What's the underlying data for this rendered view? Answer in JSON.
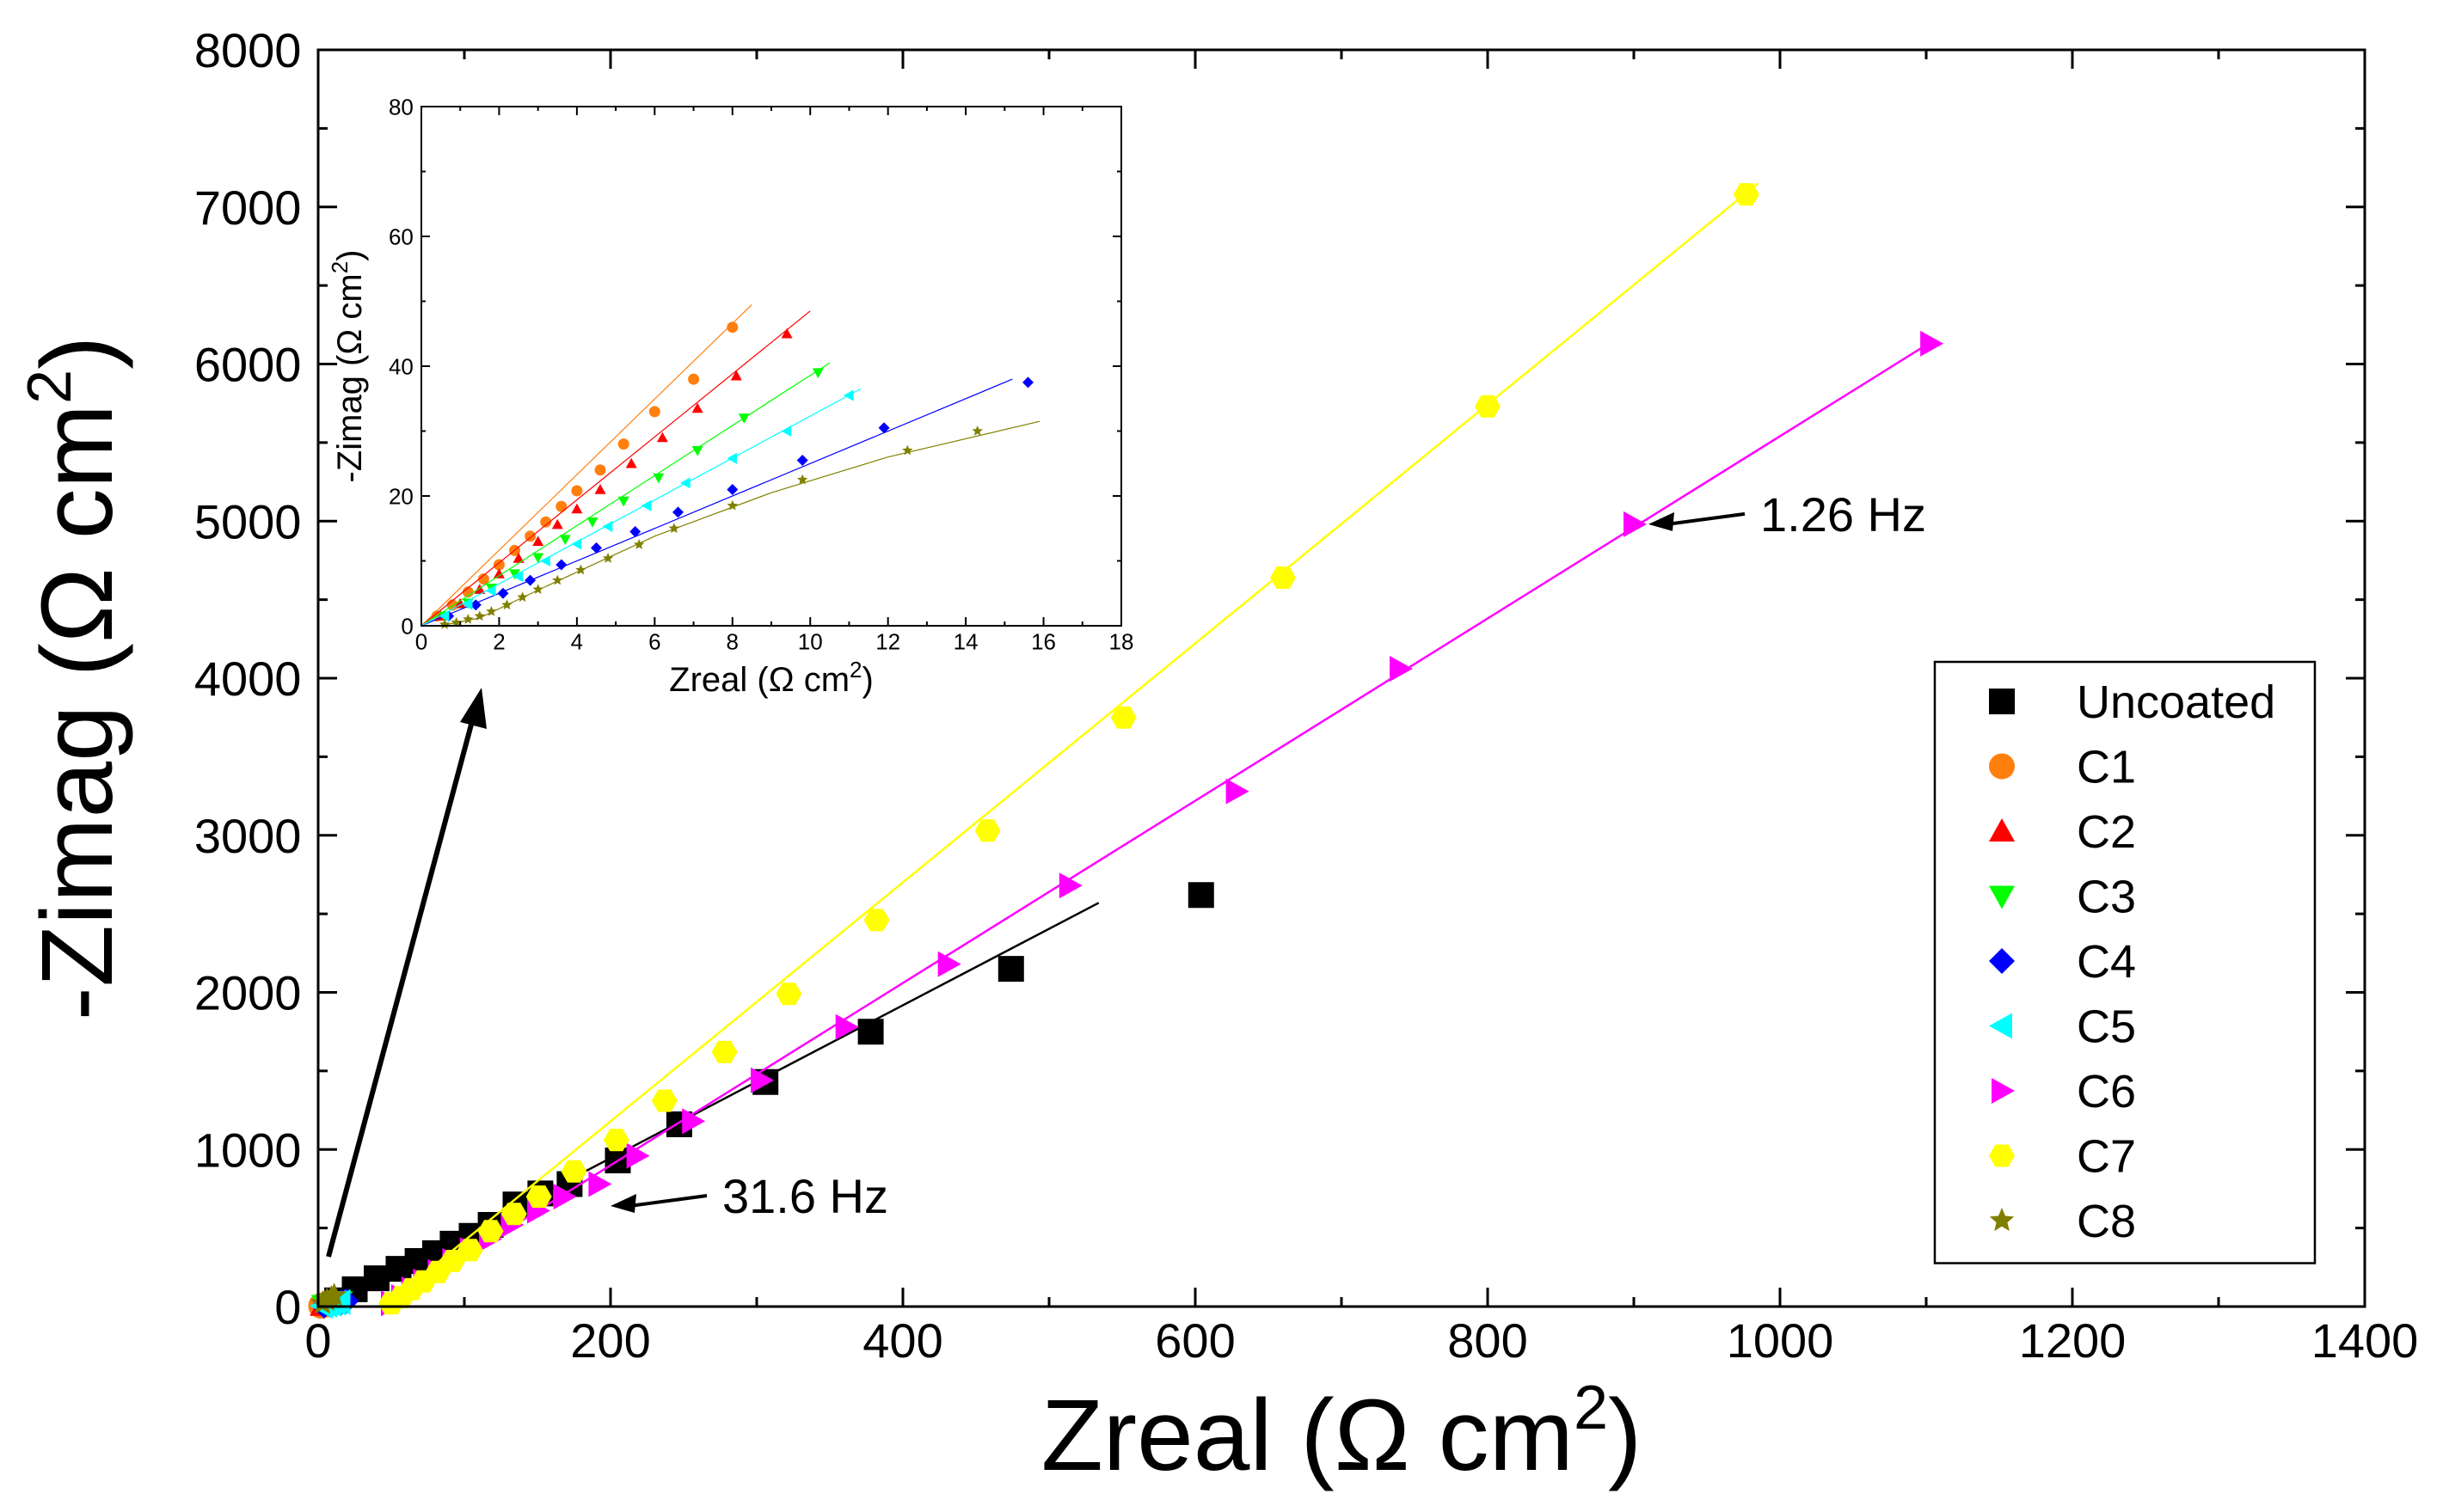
{
  "chart_data": [
    {
      "type": "scatter",
      "xlabel_main": "Zreal (Ω cm",
      "xlabel_sup": "2",
      "xlabel_close": ")",
      "ylabel_main": "-Zimag (Ω cm",
      "ylabel_sup": "2",
      "ylabel_close": ")",
      "xlim": [
        0,
        1400
      ],
      "ylim": [
        0,
        8000
      ],
      "x_ticks": [
        "0",
        "200",
        "400",
        "600",
        "800",
        "1000",
        "1200",
        "1400"
      ],
      "y_ticks": [
        "0",
        "1000",
        "2000",
        "3000",
        "4000",
        "5000",
        "6000",
        "7000",
        "8000"
      ],
      "legend_position": "bottom-right",
      "annotations": [
        {
          "text": "1.26 Hz",
          "x": 910,
          "y": 4980
        },
        {
          "text": "31.6 Hz",
          "x": 200,
          "y": 640
        }
      ],
      "series": [
        {
          "name": "Uncoated",
          "marker": "square",
          "color": "#000000",
          "points": [
            [
              13,
              40
            ],
            [
              25,
              110
            ],
            [
              40,
              180
            ],
            [
              55,
              240
            ],
            [
              68,
              290
            ],
            [
              80,
              340
            ],
            [
              92,
              400
            ],
            [
              105,
              450
            ],
            [
              118,
              520
            ],
            [
              135,
              650
            ],
            [
              152,
              720
            ],
            [
              172,
              780
            ],
            [
              205,
              930
            ],
            [
              247,
              1160
            ],
            [
              306,
              1430
            ],
            [
              378,
              1750
            ],
            [
              474,
              2150
            ],
            [
              604,
              2620
            ]
          ],
          "fit": [
            [
              10,
              20
            ],
            [
              534,
              2570
            ]
          ]
        },
        {
          "name": "C1",
          "marker": "circle",
          "color": "#ff7f0e",
          "points": [
            [
              2,
              5
            ],
            [
              4,
              10
            ],
            [
              6,
              16
            ],
            [
              8,
              22
            ]
          ],
          "fit": [
            [
              0,
              0
            ],
            [
              10,
              28
            ]
          ]
        },
        {
          "name": "C2",
          "marker": "triangle-up",
          "color": "#ff0000",
          "points": [
            [
              3,
              7
            ],
            [
              6,
              14
            ],
            [
              9,
              22
            ],
            [
              12,
              30
            ]
          ],
          "fit": [
            [
              0,
              0
            ],
            [
              14,
              34
            ]
          ]
        },
        {
          "name": "C3",
          "marker": "triangle-down",
          "color": "#00ff00",
          "points": [
            [
              4,
              8
            ],
            [
              8,
              16
            ],
            [
              12,
              24
            ],
            [
              15,
              31
            ]
          ],
          "fit": [
            [
              0,
              0
            ],
            [
              17,
              35
            ]
          ]
        },
        {
          "name": "C4",
          "marker": "diamond",
          "color": "#0000ff",
          "points": [
            [
              4,
              6
            ],
            [
              8,
              12
            ],
            [
              12,
              20
            ],
            [
              16,
              28
            ],
            [
              19,
              35
            ]
          ],
          "fit": [
            [
              0,
              0
            ],
            [
              20,
              38
            ]
          ]
        },
        {
          "name": "C5",
          "marker": "triangle-left",
          "color": "#00ffff",
          "points": [
            [
              3,
              5
            ],
            [
              6,
              11
            ],
            [
              9,
              17
            ],
            [
              12,
              24
            ],
            [
              15,
              29
            ]
          ],
          "fit": [
            [
              0,
              0
            ],
            [
              16,
              32
            ]
          ]
        },
        {
          "name": "C6",
          "marker": "triangle-right",
          "color": "#ff00ff",
          "points": [
            [
              50,
              20
            ],
            [
              57,
              60
            ],
            [
              64,
              110
            ],
            [
              72,
              160
            ],
            [
              82,
              220
            ],
            [
              92,
              290
            ],
            [
              104,
              360
            ],
            [
              117,
              430
            ],
            [
              132,
              520
            ],
            [
              150,
              610
            ],
            [
              168,
              700
            ],
            [
              192,
              780
            ],
            [
              218,
              960
            ],
            [
              256,
              1180
            ],
            [
              303,
              1440
            ],
            [
              361,
              1780
            ],
            [
              431,
              2180
            ],
            [
              514,
              2680
            ],
            [
              628,
              3280
            ],
            [
              740,
              4060
            ],
            [
              900,
              4980
            ],
            [
              1103,
              6130
            ]
          ],
          "fit": [
            [
              45,
              0
            ],
            [
              1105,
              6150
            ]
          ]
        },
        {
          "name": "C7",
          "marker": "hexagon",
          "color": "#ffff00",
          "points": [
            [
              50,
              20
            ],
            [
              57,
              60
            ],
            [
              64,
              110
            ],
            [
              72,
              160
            ],
            [
              82,
              220
            ],
            [
              92,
              290
            ],
            [
              104,
              360
            ],
            [
              118,
              480
            ],
            [
              134,
              590
            ],
            [
              151,
              700
            ],
            [
              175,
              860
            ],
            [
              204,
              1060
            ],
            [
              237,
              1310
            ],
            [
              278,
              1620
            ],
            [
              322,
              1990
            ],
            [
              382,
              2460
            ],
            [
              458,
              3030
            ],
            [
              551,
              3750
            ],
            [
              660,
              4640
            ],
            [
              800,
              5730
            ],
            [
              977,
              7080
            ]
          ],
          "fit": [
            [
              45,
              0
            ],
            [
              985,
              7150
            ]
          ]
        },
        {
          "name": "C8",
          "marker": "star",
          "color": "#808000",
          "points": [
            [
              3,
              20
            ],
            [
              6,
              40
            ],
            [
              9,
              55
            ],
            [
              11,
              70
            ]
          ],
          "fit": [
            [
              0,
              0
            ],
            [
              14,
              80
            ]
          ]
        }
      ]
    },
    {
      "type": "scatter",
      "role": "inset",
      "xlabel_main": "Zreal (Ω cm",
      "xlabel_sup": "2",
      "xlabel_close": ")",
      "ylabel_main": "-Zimag (Ω cm",
      "ylabel_sup": "2",
      "ylabel_close": ")",
      "xlim": [
        0,
        18
      ],
      "ylim": [
        0,
        80
      ],
      "x_ticks": [
        "0",
        "2",
        "4",
        "6",
        "8",
        "10",
        "12",
        "14",
        "16",
        "18"
      ],
      "y_ticks": [
        "0",
        "20",
        "40",
        "60",
        "80"
      ],
      "series": [
        {
          "name": "C1",
          "marker": "circle",
          "color": "#ff7f0e",
          "points": [
            [
              0.4,
              1.5
            ],
            [
              0.8,
              3.2
            ],
            [
              1.2,
              5.2
            ],
            [
              1.6,
              7.2
            ],
            [
              2.0,
              9.4
            ],
            [
              2.4,
              11.6
            ],
            [
              2.8,
              13.8
            ],
            [
              3.2,
              16.0
            ],
            [
              3.6,
              18.4
            ],
            [
              4.0,
              20.8
            ],
            [
              4.6,
              24.0
            ],
            [
              5.2,
              28.0
            ],
            [
              6.0,
              33.0
            ],
            [
              7.0,
              38.0
            ],
            [
              8.0,
              46.0
            ]
          ],
          "fit": [
            [
              0,
              0
            ],
            [
              8.5,
              49.5
            ]
          ]
        },
        {
          "name": "C2",
          "marker": "triangle-up",
          "color": "#ff0000",
          "points": [
            [
              0.5,
              1.5
            ],
            [
              1.0,
              3.4
            ],
            [
              1.5,
              5.6
            ],
            [
              2.0,
              8.0
            ],
            [
              2.5,
              10.4
            ],
            [
              3.0,
              13.0
            ],
            [
              3.5,
              15.6
            ],
            [
              4.0,
              18.0
            ],
            [
              4.6,
              21.0
            ],
            [
              5.4,
              25.0
            ],
            [
              6.2,
              29.0
            ],
            [
              7.1,
              33.5
            ],
            [
              8.1,
              38.5
            ],
            [
              9.4,
              45.0
            ]
          ],
          "fit": [
            [
              0,
              0
            ],
            [
              10,
              48.5
            ]
          ]
        },
        {
          "name": "C3",
          "marker": "triangle-down",
          "color": "#00ff00",
          "points": [
            [
              0.6,
              1.5
            ],
            [
              1.2,
              3.5
            ],
            [
              1.8,
              5.8
            ],
            [
              2.4,
              8.0
            ],
            [
              3.0,
              10.5
            ],
            [
              3.7,
              13.3
            ],
            [
              4.4,
              16.0
            ],
            [
              5.2,
              19.2
            ],
            [
              6.1,
              22.8
            ],
            [
              7.1,
              27.0
            ],
            [
              8.3,
              32.0
            ],
            [
              10.2,
              39.0
            ]
          ],
          "fit": [
            [
              0,
              0
            ],
            [
              10.5,
              40.5
            ]
          ]
        },
        {
          "name": "C4",
          "marker": "diamond",
          "color": "#0000ff",
          "points": [
            [
              0.7,
              1.5
            ],
            [
              1.4,
              3.2
            ],
            [
              2.1,
              5.0
            ],
            [
              2.8,
              7.0
            ],
            [
              3.6,
              9.4
            ],
            [
              4.5,
              12.0
            ],
            [
              5.5,
              14.5
            ],
            [
              6.6,
              17.5
            ],
            [
              8.0,
              21.0
            ],
            [
              9.8,
              25.5
            ],
            [
              11.9,
              30.5
            ],
            [
              15.6,
              37.5
            ]
          ],
          "fit": [
            [
              0,
              0
            ],
            [
              15.2,
              38.0
            ]
          ]
        },
        {
          "name": "C5",
          "marker": "triangle-left",
          "color": "#00ffff",
          "points": [
            [
              0.6,
              1.5
            ],
            [
              1.2,
              3.3
            ],
            [
              1.8,
              5.4
            ],
            [
              2.5,
              7.6
            ],
            [
              3.2,
              10.0
            ],
            [
              4.0,
              12.6
            ],
            [
              4.8,
              15.3
            ],
            [
              5.8,
              18.5
            ],
            [
              6.8,
              22.0
            ],
            [
              8.0,
              25.8
            ],
            [
              9.4,
              30.0
            ],
            [
              11.0,
              35.5
            ]
          ],
          "fit": [
            [
              0,
              0
            ],
            [
              11.3,
              36.5
            ]
          ]
        },
        {
          "name": "C8",
          "marker": "star",
          "color": "#808000",
          "points": [
            [
              0.6,
              0.2
            ],
            [
              0.9,
              0.5
            ],
            [
              1.2,
              1.0
            ],
            [
              1.5,
              1.5
            ],
            [
              1.8,
              2.2
            ],
            [
              2.2,
              3.2
            ],
            [
              2.6,
              4.4
            ],
            [
              3.0,
              5.6
            ],
            [
              3.5,
              7.0
            ],
            [
              4.1,
              8.6
            ],
            [
              4.8,
              10.4
            ],
            [
              5.6,
              12.5
            ],
            [
              6.5,
              15.0
            ],
            [
              8.0,
              18.5
            ],
            [
              9.8,
              22.5
            ],
            [
              12.5,
              27.0
            ],
            [
              14.3,
              30.0
            ]
          ],
          "fit": [
            [
              0.5,
              0
            ],
            [
              1.5,
              1.2
            ],
            [
              3,
              5.5
            ],
            [
              6,
              13.8
            ],
            [
              9,
              20.5
            ],
            [
              12,
              26.0
            ],
            [
              15.9,
              31.5
            ]
          ]
        }
      ]
    }
  ]
}
